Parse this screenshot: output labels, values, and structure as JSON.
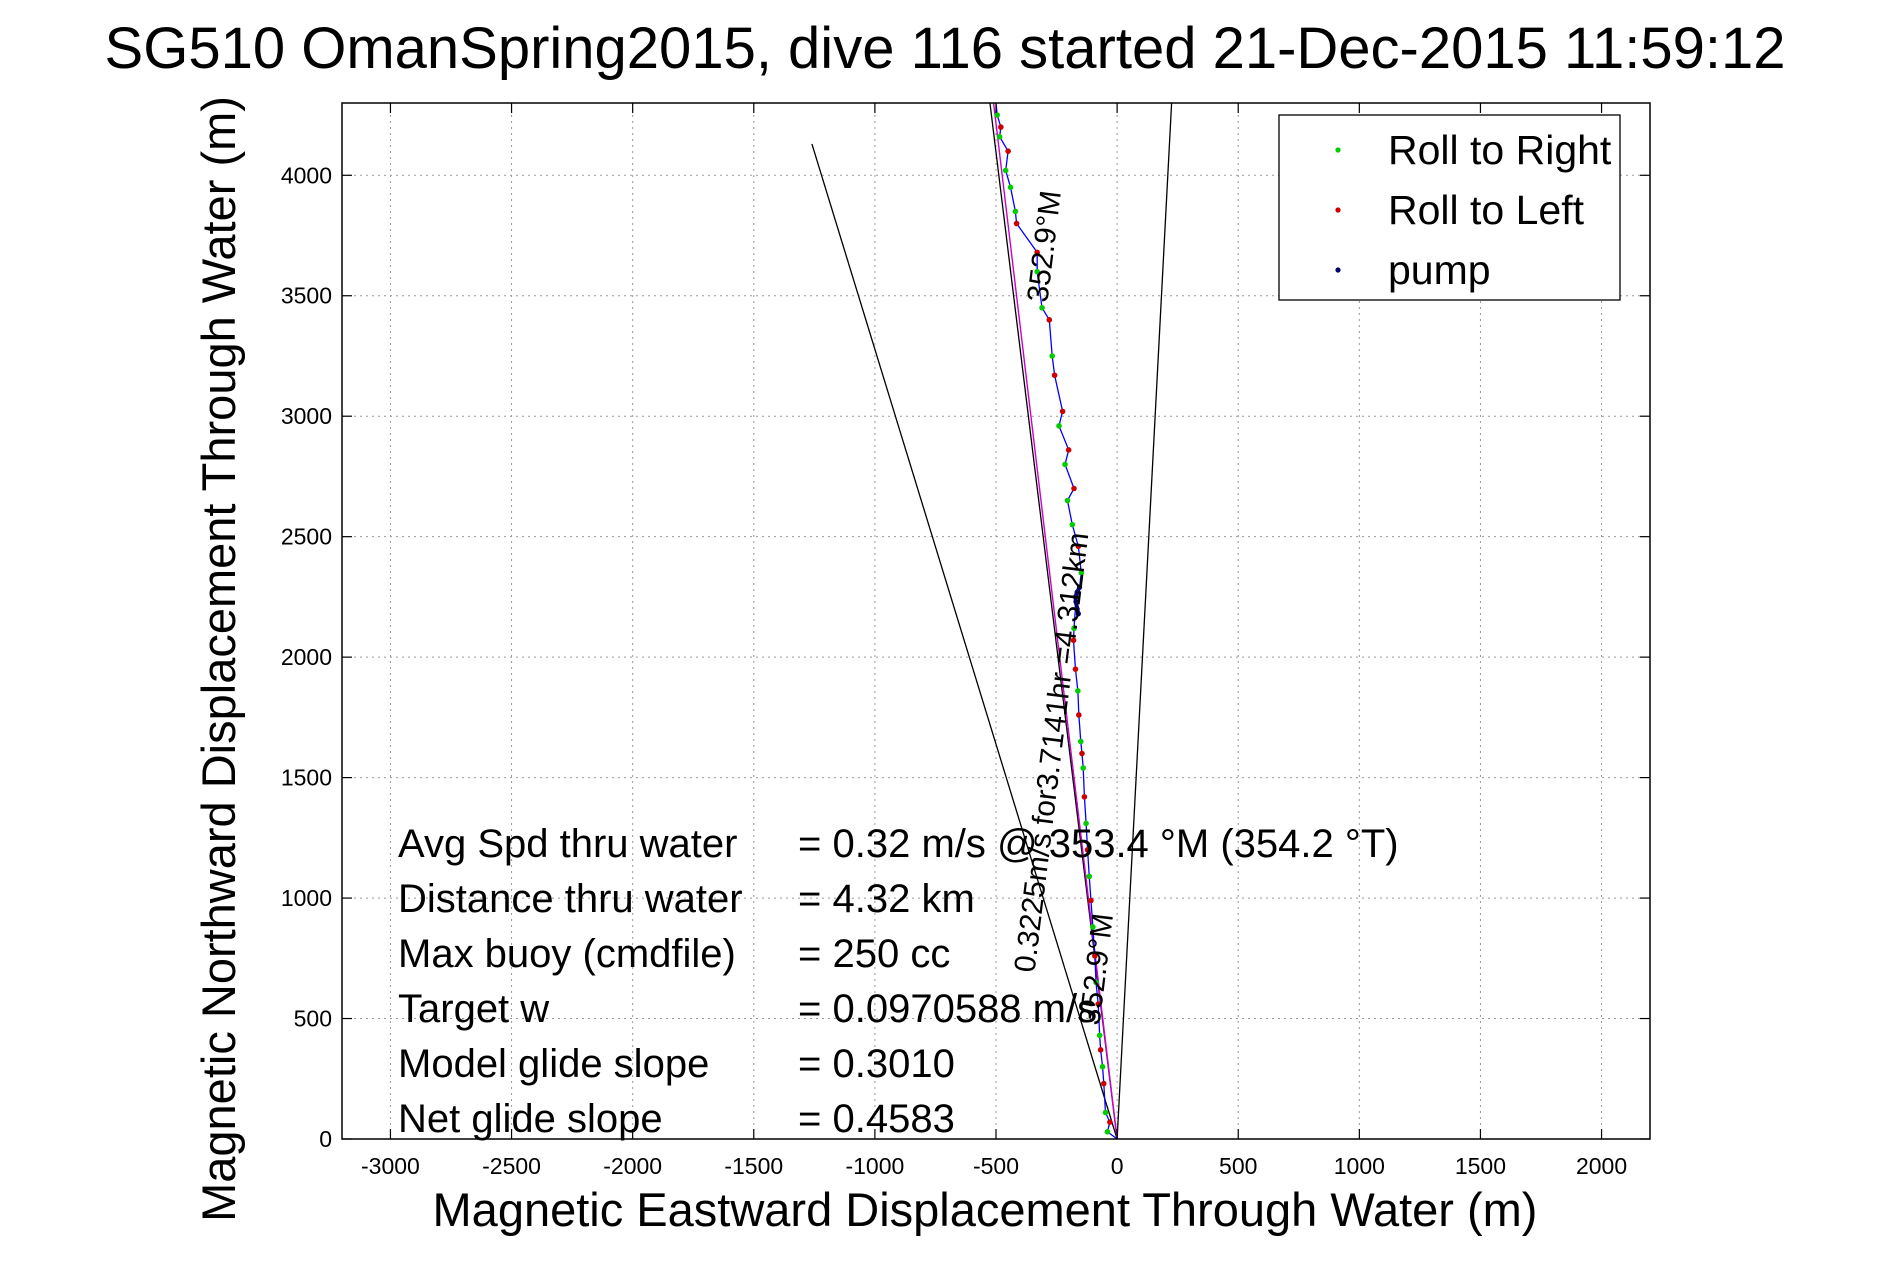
{
  "chart_data": {
    "type": "scatter",
    "title": "SG510 OmanSpring2015, dive 116 started 21-Dec-2015 11:59:12",
    "xlabel": "Magnetic Eastward Displacement Through Water (m)",
    "ylabel": "Magnetic Northward Displacement Through Water (m)",
    "xlim": [
      -3200,
      2200
    ],
    "ylim": [
      0,
      4300
    ],
    "xticks": [
      -3000,
      -2500,
      -2000,
      -1500,
      -1000,
      -500,
      0,
      500,
      1000,
      1500,
      2000
    ],
    "yticks": [
      0,
      500,
      1000,
      1500,
      2000,
      2500,
      3000,
      3500,
      4000
    ],
    "grid": true,
    "legend_position": "top-right",
    "colors": {
      "roll_right": "#00cc00",
      "roll_left": "#cc0000",
      "pump": "#000066",
      "track": "#0000ff",
      "net_track": "#cc00cc",
      "reference_lines": "#000000"
    },
    "series": [
      {
        "name": "Roll to Right",
        "points": [
          [
            -40,
            30
          ],
          [
            -48,
            110
          ],
          [
            -60,
            300
          ],
          [
            -72,
            430
          ],
          [
            -87,
            650
          ],
          [
            -100,
            880
          ],
          [
            -115,
            1090
          ],
          [
            -128,
            1310
          ],
          [
            -140,
            1540
          ],
          [
            -150,
            1650
          ],
          [
            -162,
            1860
          ],
          [
            -178,
            2120
          ],
          [
            -148,
            2350
          ],
          [
            -185,
            2550
          ],
          [
            -205,
            2650
          ],
          [
            -215,
            2800
          ],
          [
            -240,
            2960
          ],
          [
            -268,
            3250
          ],
          [
            -310,
            3450
          ],
          [
            -330,
            3600
          ],
          [
            -420,
            3850
          ],
          [
            -440,
            3950
          ],
          [
            -460,
            4020
          ],
          [
            -485,
            4160
          ],
          [
            -495,
            4250
          ]
        ]
      },
      {
        "name": "Roll to Left",
        "points": [
          [
            -30,
            70
          ],
          [
            -55,
            230
          ],
          [
            -68,
            370
          ],
          [
            -78,
            560
          ],
          [
            -92,
            760
          ],
          [
            -108,
            990
          ],
          [
            -122,
            1200
          ],
          [
            -135,
            1420
          ],
          [
            -145,
            1600
          ],
          [
            -158,
            1760
          ],
          [
            -172,
            1950
          ],
          [
            -180,
            2070
          ],
          [
            -160,
            2460
          ],
          [
            -178,
            2700
          ],
          [
            -200,
            2860
          ],
          [
            -225,
            3020
          ],
          [
            -258,
            3170
          ],
          [
            -280,
            3400
          ],
          [
            -330,
            3680
          ],
          [
            -415,
            3800
          ],
          [
            -450,
            4100
          ],
          [
            -480,
            4200
          ]
        ]
      },
      {
        "name": "pump",
        "points": [
          [
            -160,
            2180
          ],
          [
            -165,
            2200
          ],
          [
            -170,
            2230
          ],
          [
            -172,
            2250
          ],
          [
            -165,
            2270
          ],
          [
            -155,
            2290
          ]
        ]
      }
    ],
    "track": [
      [
        0,
        0
      ],
      [
        -40,
        30
      ],
      [
        -30,
        70
      ],
      [
        -48,
        110
      ],
      [
        -55,
        230
      ],
      [
        -60,
        300
      ],
      [
        -68,
        370
      ],
      [
        -72,
        430
      ],
      [
        -78,
        560
      ],
      [
        -87,
        650
      ],
      [
        -92,
        760
      ],
      [
        -100,
        880
      ],
      [
        -108,
        990
      ],
      [
        -115,
        1090
      ],
      [
        -122,
        1200
      ],
      [
        -128,
        1310
      ],
      [
        -135,
        1420
      ],
      [
        -140,
        1540
      ],
      [
        -145,
        1600
      ],
      [
        -150,
        1650
      ],
      [
        -158,
        1760
      ],
      [
        -162,
        1860
      ],
      [
        -172,
        1950
      ],
      [
        -180,
        2070
      ],
      [
        -178,
        2120
      ],
      [
        -170,
        2230
      ],
      [
        -155,
        2290
      ],
      [
        -148,
        2350
      ],
      [
        -160,
        2460
      ],
      [
        -185,
        2550
      ],
      [
        -205,
        2650
      ],
      [
        -178,
        2700
      ],
      [
        -215,
        2800
      ],
      [
        -200,
        2860
      ],
      [
        -240,
        2960
      ],
      [
        -225,
        3020
      ],
      [
        -258,
        3170
      ],
      [
        -268,
        3250
      ],
      [
        -280,
        3400
      ],
      [
        -310,
        3450
      ],
      [
        -330,
        3600
      ],
      [
        -330,
        3680
      ],
      [
        -415,
        3800
      ],
      [
        -420,
        3850
      ],
      [
        -440,
        3950
      ],
      [
        -460,
        4020
      ],
      [
        -450,
        4100
      ],
      [
        -485,
        4160
      ],
      [
        -480,
        4200
      ],
      [
        -495,
        4250
      ],
      [
        -500,
        4300
      ]
    ],
    "net_track": [
      [
        0,
        0
      ],
      [
        -510,
        4300
      ]
    ],
    "reference_lines": [
      [
        [
          0,
          0
        ],
        [
          -1260,
          4130
        ]
      ],
      [
        [
          0,
          0
        ],
        [
          -525,
          4300
        ]
      ],
      [
        [
          0,
          0
        ],
        [
          225,
          4300
        ]
      ]
    ],
    "annotations": [
      {
        "text": "352.9°M",
        "at": [
          -260,
          3700
        ]
      },
      {
        "text": "0.3225m/s for3.7141hr =4.312km",
        "at": [
          -230,
          1600
        ]
      },
      {
        "text": "352.9°M",
        "at": [
          -45,
          700
        ]
      }
    ],
    "stats": [
      {
        "label": "Avg Spd thru water",
        "value": "=  0.32 m/s @ 353.4 °M (354.2 °T)"
      },
      {
        "label": "Distance thru water",
        "value": "=  4.32 km"
      },
      {
        "label": "Max buoy (cmdfile)",
        "value": "= 250 cc"
      },
      {
        "label": "Target w",
        "value": "= 0.0970588 m/s"
      },
      {
        "label": "Model glide slope",
        "value": "= 0.3010"
      },
      {
        "label": "Net glide slope",
        "value": "= 0.4583"
      }
    ]
  }
}
